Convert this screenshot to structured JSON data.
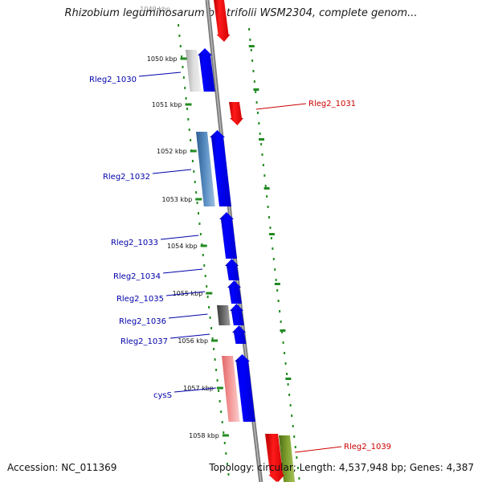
{
  "header": {
    "title": "Rhizobium leguminosarum bv. trifolii WSM2304, complete genom...",
    "top_tick_label": "1049 kbp"
  },
  "footer": {
    "accession": "Accession: NC_011369",
    "summary": "Topology: circular; Length: 4,537,948 bp; Genes: 4,387"
  },
  "colors": {
    "forward_gene": "#0000ee",
    "reverse_gene": "#ee0000",
    "forward_label": "#0000aa",
    "reverse_label": "#cc0000",
    "backbone": "#888888",
    "dotted_track": "#228b22",
    "cog_light_gray": "#c8c8c8",
    "cog_steel_blue": "#4a7fb5",
    "cog_dark_gray": "#555555",
    "cog_salmon": "#f08080",
    "cog_olive": "#6b8e23"
  },
  "ticks": [
    {
      "label": "1050 kbp"
    },
    {
      "label": "1051 kbp"
    },
    {
      "label": "1052 kbp"
    },
    {
      "label": "1053 kbp"
    },
    {
      "label": "1054 kbp"
    },
    {
      "label": "1055 kbp"
    },
    {
      "label": "1056 kbp"
    },
    {
      "label": "1057 kbp"
    },
    {
      "label": "1058 kbp"
    }
  ],
  "genes": [
    {
      "label": "Rleg2_1030",
      "strand": "forward",
      "cog": "cog_light_gray"
    },
    {
      "label": "Rleg2_1031",
      "strand": "reverse"
    },
    {
      "label": "Rleg2_1032",
      "strand": "forward",
      "cog": "cog_steel_blue"
    },
    {
      "label": "Rleg2_1033",
      "strand": "forward"
    },
    {
      "label": "Rleg2_1034",
      "strand": "forward"
    },
    {
      "label": "Rleg2_1035",
      "strand": "forward"
    },
    {
      "label": "Rleg2_1036",
      "strand": "forward",
      "cog": "cog_dark_gray"
    },
    {
      "label": "Rleg2_1037",
      "strand": "forward"
    },
    {
      "label": "cysS",
      "strand": "forward",
      "cog": "cog_salmon"
    },
    {
      "label": "Rleg2_1039",
      "strand": "reverse",
      "cog": "cog_olive"
    }
  ]
}
